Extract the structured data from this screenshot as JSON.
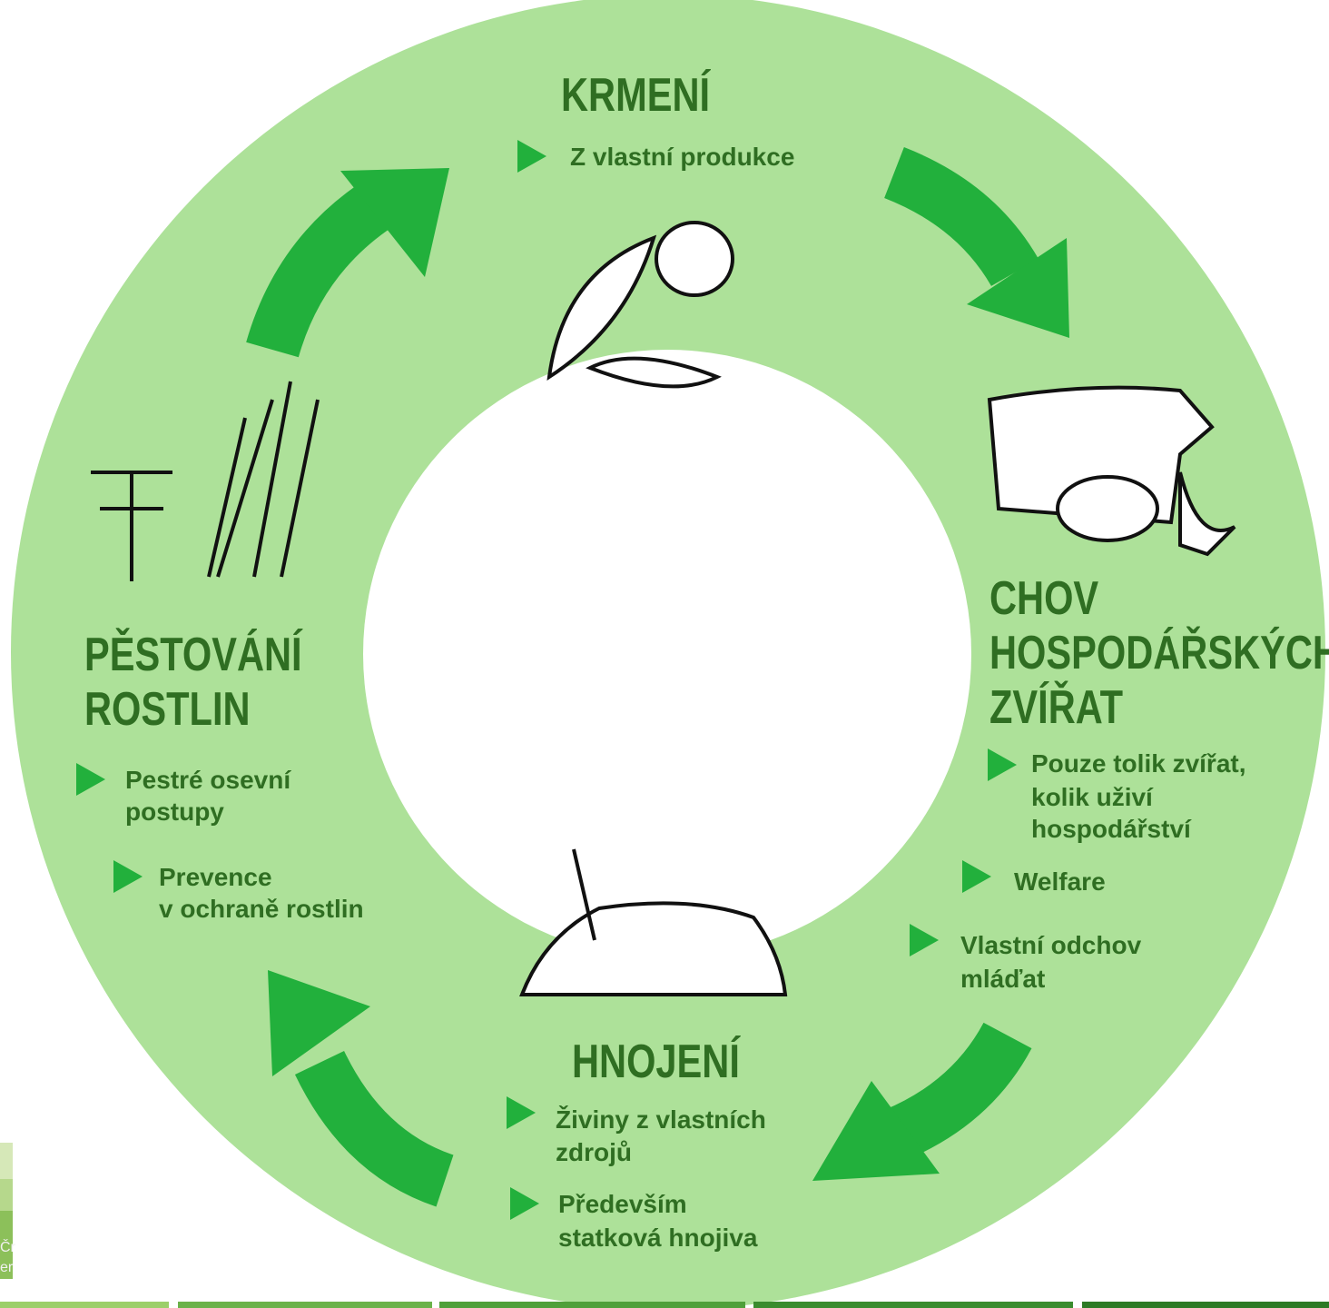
{
  "sections": [
    {
      "title": [
        "KRMENÍ"
      ],
      "items": [
        [
          "Z vlastní produkce"
        ]
      ]
    },
    {
      "title": [
        "CHOV",
        "HOSPODÁŘSKÝCH",
        "ZVÍŘAT"
      ],
      "items": [
        [
          "Pouze tolik zvířat,",
          "kolik uživí",
          "hospodářství"
        ],
        [
          "Welfare"
        ],
        [
          "Vlastní odchov",
          "mláďat"
        ]
      ]
    },
    {
      "title": [
        "HNOJENÍ"
      ],
      "items": [
        [
          "Živiny z vlastních",
          " zdrojů"
        ],
        [
          "Především",
          "statková hnojiva"
        ]
      ]
    },
    {
      "title": [
        "PĚSTOVÁNÍ",
        "ROSTLIN"
      ],
      "items": [
        [
          "Pestré osevní",
          "postupy"
        ],
        [
          "Prevence",
          "v ochraně rostlin"
        ]
      ]
    }
  ],
  "corner_fragments": [
    "Čr",
    "er"
  ]
}
